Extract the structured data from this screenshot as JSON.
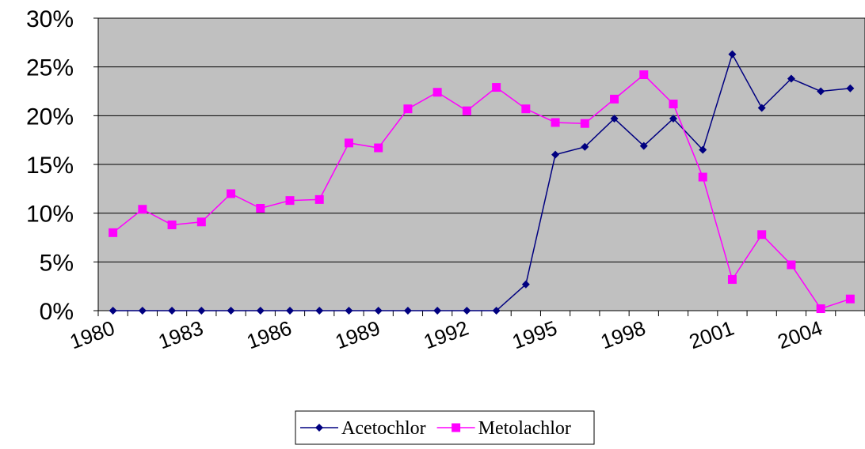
{
  "chart_data": {
    "type": "line",
    "categories": [
      "1980",
      null,
      null,
      "1983",
      null,
      null,
      "1986",
      null,
      null,
      "1989",
      null,
      null,
      "1992",
      null,
      null,
      "1995",
      null,
      null,
      "1998",
      null,
      null,
      "2001",
      null,
      null,
      "2004",
      null
    ],
    "series": [
      {
        "name": "Acetochlor",
        "color": "#000080",
        "marker": "diamond",
        "values": [
          0,
          0,
          0,
          0,
          0,
          0,
          0,
          0,
          0,
          0,
          0,
          0,
          0,
          0,
          2.7,
          16.0,
          16.8,
          19.7,
          16.9,
          19.7,
          16.5,
          26.3,
          20.8,
          23.8,
          22.5,
          22.8
        ]
      },
      {
        "name": "Metolachlor",
        "color": "#ff00ff",
        "marker": "square",
        "values": [
          8.0,
          10.4,
          8.8,
          9.1,
          12.0,
          10.5,
          11.3,
          11.4,
          17.2,
          16.7,
          20.7,
          22.4,
          20.5,
          22.9,
          20.7,
          19.3,
          19.2,
          21.7,
          24.2,
          21.2,
          13.7,
          3.2,
          7.8,
          4.7,
          0.2,
          1.2
        ]
      }
    ],
    "ylim": [
      0,
      30
    ],
    "yticks": [
      {
        "value": 0,
        "label": "0%"
      },
      {
        "value": 5,
        "label": "5%"
      },
      {
        "value": 10,
        "label": "10%"
      },
      {
        "value": 15,
        "label": "15%"
      },
      {
        "value": 20,
        "label": "20%"
      },
      {
        "value": 25,
        "label": "25%"
      },
      {
        "value": 30,
        "label": "30%"
      }
    ],
    "grid": true,
    "legend": "bottom",
    "plot_background": "#c0c0c0"
  }
}
